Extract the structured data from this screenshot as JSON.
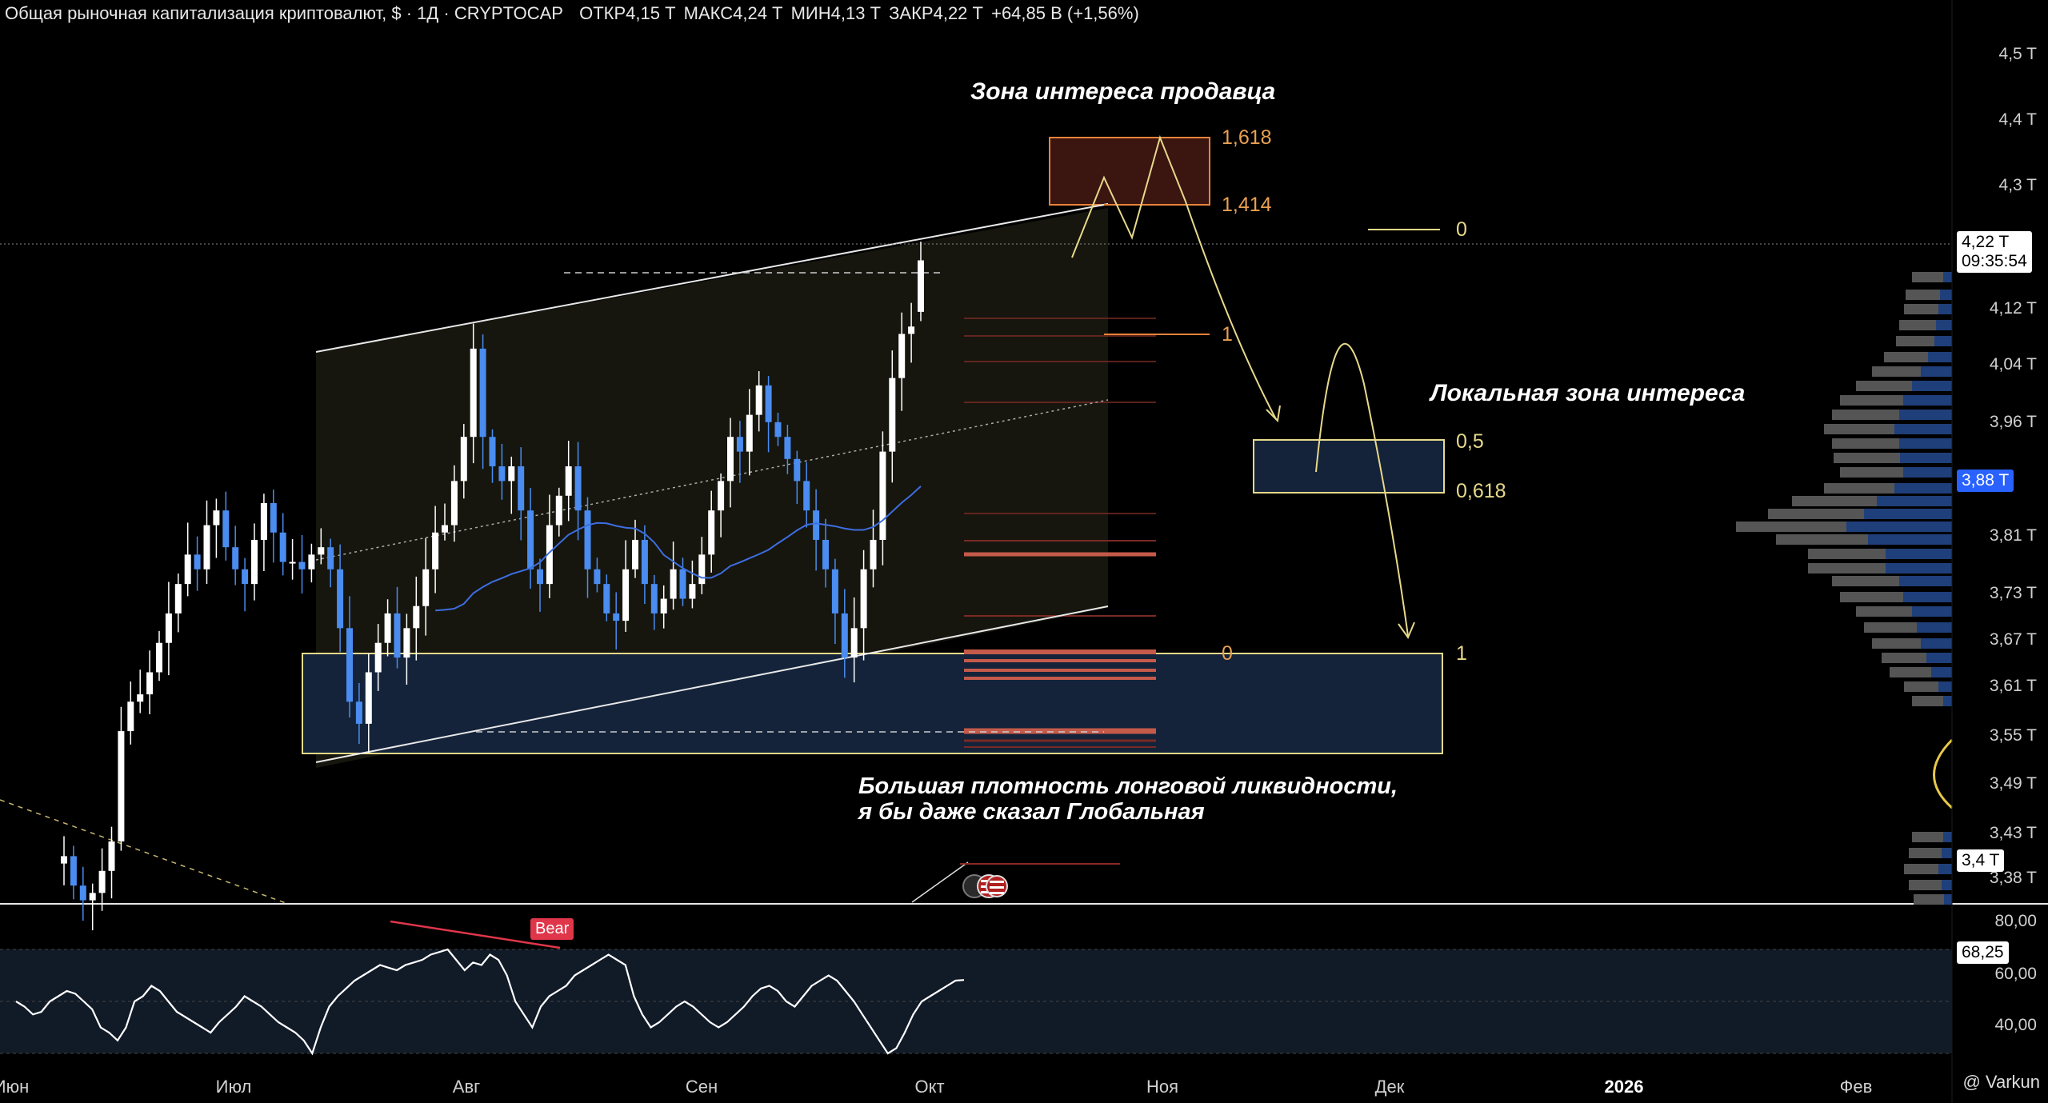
{
  "header": {
    "title": "Общая рыночная капитализация криптовалют, $ · 1Д · CRYPTOCAP",
    "open": "ОТКР4,15 T",
    "high": "МАКС4,24 T",
    "low": "МИН4,13 T",
    "close": "ЗАКР4,22 T",
    "change": "+64,85 B (+1,56%)"
  },
  "annotations": {
    "seller_zone": "Зона интереса продавца",
    "local_zone": "Локальная зона интереса",
    "liquidity_line1": "Большая плотность лонговой ликвидности,",
    "liquidity_line2": "я бы даже сказал Глобальная"
  },
  "fib_labels": {
    "f1618": "1,618",
    "f1414": "1,414",
    "f0_top": "0",
    "f1_mid": "1",
    "f05": "0,5",
    "f0618": "0,618",
    "f0_low": "0",
    "f1_low": "1"
  },
  "price_axis": {
    "ticks": [
      "4,5 T",
      "4,4 T",
      "4,3 T",
      "4,12 T",
      "4,04 T",
      "3,96 T",
      "3,81 T",
      "3,73 T",
      "3,67 T",
      "3,61 T",
      "3,55 T",
      "3,49 T",
      "3,43 T",
      "3,38 T"
    ],
    "current_price": "4,22 T",
    "countdown": "09:35:54",
    "blue_marker": "3,88 T",
    "crosshair_marker": "3,4 T"
  },
  "rsi_axis": {
    "ticks": [
      "80,00",
      "60,00",
      "40,00"
    ],
    "current": "68,25",
    "bear_label": "Bear"
  },
  "time_axis": {
    "ticks": [
      "Июн",
      "Июл",
      "Авг",
      "Сен",
      "Окт",
      "Ноя",
      "Дек",
      "2026",
      "Фев"
    ]
  },
  "watermark": "@ Varkun",
  "colors": {
    "bull_candle": "#ffffff",
    "bear_candle": "#4a8cf0",
    "ma_line": "#3d6ee0",
    "channel": "#e8e8e8",
    "seller_zone": "#e8843a",
    "local_zone": "#e7d98a",
    "liquidity_zone": "#e7d98a",
    "rsi_line": "#ffffff",
    "bear_divergence": "#e0364a"
  },
  "chart_data": {
    "type": "candlestick",
    "title": "Общая рыночная капитализация криптовалют, $ · 1Д · CRYPTOCAP",
    "y_unit": "T USD",
    "ylim": [
      3.36,
      4.55
    ],
    "grid": false,
    "x_axis": [
      "Июн",
      "Июл",
      "Авг",
      "Сен",
      "Окт",
      "Ноя",
      "Дек",
      "2026",
      "Фев"
    ],
    "last": {
      "open": 4.15,
      "high": 4.24,
      "low": 4.13,
      "close": 4.22
    },
    "close_series": [
      3.41,
      3.37,
      3.35,
      3.36,
      3.39,
      3.43,
      3.58,
      3.62,
      3.63,
      3.66,
      3.7,
      3.74,
      3.78,
      3.82,
      3.8,
      3.86,
      3.88,
      3.83,
      3.8,
      3.78,
      3.84,
      3.89,
      3.85,
      3.81,
      3.81,
      3.8,
      3.82,
      3.83,
      3.8,
      3.72,
      3.62,
      3.59,
      3.66,
      3.7,
      3.74,
      3.68,
      3.72,
      3.75,
      3.8,
      3.85,
      3.86,
      3.92,
      3.98,
      4.1,
      3.98,
      3.94,
      3.92,
      3.94,
      3.88,
      3.8,
      3.78,
      3.86,
      3.9,
      3.94,
      3.88,
      3.8,
      3.78,
      3.74,
      3.73,
      3.8,
      3.84,
      3.78,
      3.74,
      3.76,
      3.8,
      3.76,
      3.78,
      3.82,
      3.88,
      3.92,
      3.98,
      3.96,
      4.01,
      4.05,
      4.0,
      3.98,
      3.95,
      3.92,
      3.88,
      3.84,
      3.8,
      3.74,
      3.68,
      3.72,
      3.8,
      3.84,
      3.96,
      4.06,
      4.12,
      4.13,
      4.22
    ],
    "rsi": {
      "ylim": [
        30,
        85
      ],
      "levels": [
        80,
        60,
        40
      ],
      "current": 68.25
    },
    "levels": {
      "seller_zone": [
        4.3,
        4.37
      ],
      "local_zone": [
        3.875,
        3.92
      ],
      "liquidity_zone": [
        3.53,
        3.65
      ]
    }
  }
}
